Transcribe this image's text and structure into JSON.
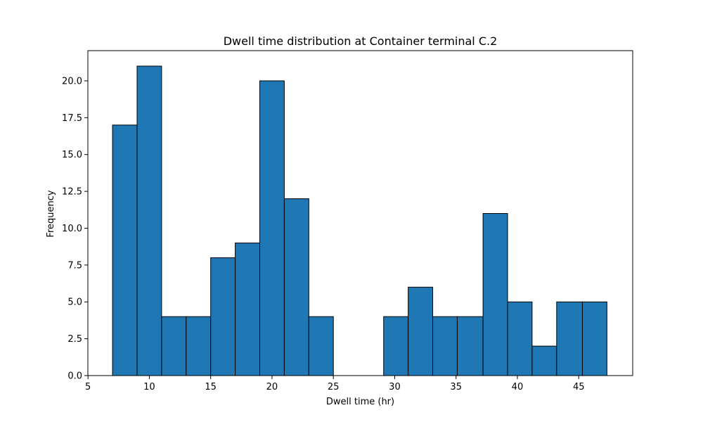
{
  "chart_data": {
    "type": "bar",
    "title": "Dwell time distribution at Container terminal C.2",
    "xlabel": "Dwell time (hr)",
    "ylabel": "Frequency",
    "xlim": [
      4.99,
      49.4
    ],
    "ylim": [
      0,
      22.05
    ],
    "x_ticks": [
      5,
      10,
      15,
      20,
      25,
      30,
      35,
      40,
      45
    ],
    "x_tick_labels": [
      "5",
      "10",
      "15",
      "20",
      "25",
      "30",
      "35",
      "40",
      "45"
    ],
    "y_ticks": [
      0,
      2.5,
      5,
      7.5,
      10,
      12.5,
      15,
      17.5,
      20
    ],
    "y_tick_labels": [
      "0.0",
      "2.5",
      "5.0",
      "7.5",
      "10.0",
      "12.5",
      "15.0",
      "17.5",
      "20.0"
    ],
    "bin_edges": [
      7.0,
      9.0,
      11.0,
      13.0,
      15.0,
      17.0,
      19.0,
      21.0,
      23.0,
      25.0,
      27.1,
      29.1,
      31.1,
      33.1,
      35.1,
      37.2,
      39.2,
      41.2,
      43.2,
      45.3,
      47.3
    ],
    "values": [
      17,
      21,
      4,
      4,
      8,
      9,
      20,
      12,
      4,
      0,
      0,
      4,
      6,
      4,
      4,
      11,
      5,
      2,
      5,
      5
    ],
    "bar_color": "#1f77b4",
    "edge_color": "#000000",
    "grid": false,
    "legend": "none"
  }
}
